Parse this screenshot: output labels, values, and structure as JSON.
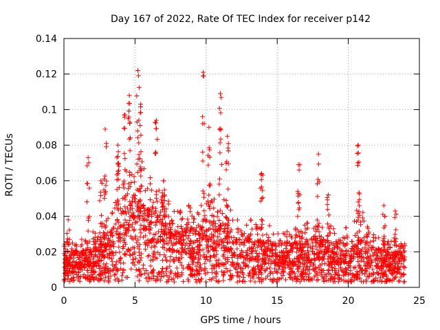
{
  "chart_data": {
    "type": "scatter",
    "title": "Day 167 of 2022, Rate Of TEC Index for receiver p142",
    "xlabel": "GPS time / hours",
    "ylabel": "ROTI / TECUs",
    "xlim": [
      0,
      25
    ],
    "ylim": [
      0,
      0.14
    ],
    "x_ticks": [
      0,
      5,
      10,
      15,
      20,
      25
    ],
    "x_tick_labels": [
      "0",
      "5",
      "10",
      "15",
      "20",
      "25"
    ],
    "y_ticks": [
      0,
      0.02,
      0.04,
      0.06,
      0.08,
      0.1,
      0.12,
      0.14
    ],
    "y_tick_labels": [
      "0",
      "0.02",
      "0.04",
      "0.06",
      "0.08",
      "0.1",
      "0.12",
      "0.14"
    ],
    "grid": true,
    "legend": "none",
    "marker": "+",
    "color": "#ff0000",
    "series": [
      {
        "x_range": [
          0,
          24
        ],
        "baseline_envelope": [
          [
            0,
            0.012
          ],
          [
            1,
            0.011
          ],
          [
            2,
            0.013
          ],
          [
            3,
            0.016
          ],
          [
            4,
            0.024
          ],
          [
            5,
            0.032
          ],
          [
            6,
            0.026
          ],
          [
            7,
            0.022
          ],
          [
            8,
            0.02
          ],
          [
            9,
            0.019
          ],
          [
            10,
            0.02
          ],
          [
            11,
            0.022
          ],
          [
            12,
            0.018
          ],
          [
            13,
            0.016
          ],
          [
            14,
            0.015
          ],
          [
            15,
            0.014
          ],
          [
            16,
            0.014
          ],
          [
            17,
            0.015
          ],
          [
            18,
            0.016
          ],
          [
            19,
            0.014
          ],
          [
            20,
            0.014
          ],
          [
            21,
            0.018
          ],
          [
            22,
            0.012
          ],
          [
            23,
            0.011
          ],
          [
            24,
            0.011
          ]
        ],
        "peaks": [
          {
            "x": 0.3,
            "y": 0.038
          },
          {
            "x": 1.7,
            "y": 0.073
          },
          {
            "x": 2.6,
            "y": 0.06
          },
          {
            "x": 2.9,
            "y": 0.089
          },
          {
            "x": 3.8,
            "y": 0.08
          },
          {
            "x": 4.3,
            "y": 0.097
          },
          {
            "x": 4.6,
            "y": 0.108
          },
          {
            "x": 5.2,
            "y": 0.122
          },
          {
            "x": 5.4,
            "y": 0.103
          },
          {
            "x": 6.5,
            "y": 0.094
          },
          {
            "x": 7.0,
            "y": 0.06
          },
          {
            "x": 9.8,
            "y": 0.121
          },
          {
            "x": 10.2,
            "y": 0.09
          },
          {
            "x": 11.0,
            "y": 0.109
          },
          {
            "x": 11.5,
            "y": 0.085
          },
          {
            "x": 13.9,
            "y": 0.064
          },
          {
            "x": 16.5,
            "y": 0.069
          },
          {
            "x": 17.9,
            "y": 0.075
          },
          {
            "x": 18.6,
            "y": 0.052
          },
          {
            "x": 20.7,
            "y": 0.08
          },
          {
            "x": 22.5,
            "y": 0.046
          },
          {
            "x": 23.3,
            "y": 0.043
          }
        ]
      }
    ]
  }
}
